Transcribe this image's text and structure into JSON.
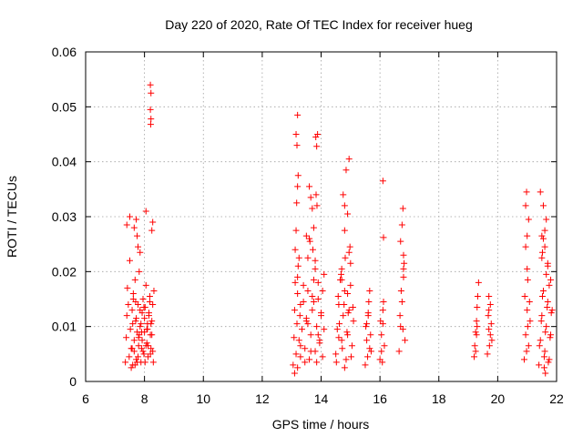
{
  "chart_data": {
    "type": "scatter",
    "title": "Day 220 of 2020, Rate Of TEC Index for receiver hueg",
    "xlabel": "GPS time / hours",
    "ylabel": "ROTI / TECUs",
    "xlim": [
      6,
      22
    ],
    "ylim": [
      0,
      0.06
    ],
    "x_ticks": [
      6,
      8,
      10,
      12,
      14,
      16,
      18,
      20,
      22
    ],
    "y_ticks": [
      0,
      0.01,
      0.02,
      0.03,
      0.04,
      0.05,
      0.06
    ],
    "x_tick_labels": [
      "6",
      "8",
      "10",
      "12",
      "14",
      "16",
      "18",
      "20",
      "22"
    ],
    "y_tick_labels": [
      "0",
      "0.01",
      "0.02",
      "0.03",
      "0.04",
      "0.05",
      "0.06"
    ],
    "grid": true,
    "marker": "+",
    "color": "#ff0000",
    "series": [
      {
        "x": [
          7.35,
          7.38,
          7.4,
          7.42,
          7.45,
          7.48,
          7.5,
          7.52,
          7.55,
          7.58,
          7.6,
          7.62,
          7.65,
          7.68,
          7.7,
          7.72,
          7.75,
          7.78,
          7.8,
          7.82,
          7.85,
          7.88,
          7.9,
          7.92,
          7.95,
          7.98,
          8.0,
          8.02,
          8.05,
          8.08,
          8.1,
          8.12,
          8.15,
          8.18,
          8.2,
          8.22,
          8.25,
          8.28,
          8.3,
          8.32,
          7.55,
          7.6,
          7.65,
          7.7,
          7.75,
          7.8,
          7.85,
          7.9,
          7.95,
          8.0,
          8.05,
          8.1,
          8.15,
          8.2,
          8.25,
          7.58,
          7.62,
          7.68,
          7.72,
          7.78,
          7.82,
          7.88,
          7.92,
          7.98,
          8.02,
          8.08,
          8.12,
          8.18,
          8.22,
          8.28,
          8.2,
          8.22,
          8.2,
          8.22,
          8.21,
          7.72,
          7.75,
          7.78,
          8.05,
          8.28,
          7.5,
          7.65,
          8.25,
          7.85,
          7.4,
          13.05,
          13.08,
          13.1,
          13.12,
          13.15,
          13.18,
          13.2,
          13.22,
          13.25,
          13.28,
          13.3,
          13.35,
          13.4,
          13.45,
          13.5,
          13.55,
          13.6,
          13.65,
          13.7,
          13.75,
          13.8,
          13.85,
          13.9,
          13.95,
          14.0,
          14.05,
          14.1,
          13.12,
          13.15,
          13.2,
          13.25,
          13.3,
          13.4,
          13.5,
          13.6,
          13.7,
          13.8,
          13.9,
          14.0,
          13.1,
          13.2,
          13.3,
          13.45,
          13.55,
          13.65,
          13.75,
          13.85,
          13.95,
          14.05,
          13.15,
          13.18,
          13.2,
          13.22,
          13.17,
          13.2,
          13.82,
          13.85,
          13.88,
          13.83,
          13.86,
          13.6,
          13.65,
          13.7,
          13.75,
          13.62,
          13.72,
          13.8,
          13.9,
          13.5,
          13.55,
          14.1,
          14.5,
          14.55,
          14.6,
          14.65,
          14.7,
          14.75,
          14.8,
          14.85,
          14.9,
          14.95,
          15.0,
          15.05,
          15.1,
          14.52,
          14.58,
          14.62,
          14.68,
          14.72,
          14.78,
          14.82,
          14.88,
          14.92,
          14.98,
          15.02,
          15.08,
          14.6,
          14.7,
          14.8,
          14.9,
          15.0,
          14.75,
          14.85,
          14.95,
          14.8,
          14.9,
          14.8,
          14.95,
          14.7,
          15.5,
          15.55,
          15.6,
          15.65,
          15.7,
          15.52,
          15.58,
          15.62,
          15.68,
          15.6,
          15.65,
          15.55,
          16.0,
          16.05,
          16.1,
          16.15,
          16.02,
          16.08,
          16.12,
          16.05,
          16.1,
          16.1,
          16.12,
          16.65,
          16.7,
          16.75,
          16.8,
          16.85,
          16.68,
          16.72,
          16.78,
          16.82,
          16.7,
          16.75,
          16.8,
          16.78,
          16.8,
          19.2,
          19.25,
          19.3,
          19.35,
          19.22,
          19.28,
          19.32,
          19.25,
          19.3,
          19.28,
          19.65,
          19.7,
          19.75,
          19.8,
          19.68,
          19.72,
          19.78,
          19.7,
          19.75,
          19.7,
          20.9,
          20.95,
          21.0,
          21.05,
          21.1,
          20.92,
          20.98,
          21.02,
          21.08,
          20.95,
          21.0,
          21.05,
          20.98,
          21.0,
          20.95,
          21.02,
          21.4,
          21.45,
          21.5,
          21.55,
          21.6,
          21.65,
          21.7,
          21.75,
          21.8,
          21.85,
          21.42,
          21.48,
          21.52,
          21.58,
          21.62,
          21.68,
          21.72,
          21.78,
          21.82,
          21.5,
          21.55,
          21.6,
          21.65,
          21.7,
          21.75,
          21.45,
          21.55,
          21.65,
          21.5,
          21.52,
          21.6,
          21.7,
          21.8,
          21.58,
          21.62
        ],
        "y": [
          0.0035,
          0.008,
          0.012,
          0.017,
          0.014,
          0.0045,
          0.022,
          0.0095,
          0.006,
          0.013,
          0.003,
          0.016,
          0.0075,
          0.0185,
          0.011,
          0.004,
          0.009,
          0.014,
          0.0065,
          0.02,
          0.01,
          0.0035,
          0.006,
          0.0125,
          0.015,
          0.005,
          0.009,
          0.0135,
          0.0175,
          0.007,
          0.0105,
          0.0045,
          0.012,
          0.0155,
          0.0085,
          0.006,
          0.011,
          0.014,
          0.0035,
          0.0165,
          0.0025,
          0.0105,
          0.0055,
          0.0145,
          0.0035,
          0.008,
          0.013,
          0.009,
          0.0055,
          0.0115,
          0.0065,
          0.0095,
          0.0125,
          0.005,
          0.0085,
          0.006,
          0.015,
          0.003,
          0.0115,
          0.0045,
          0.0085,
          0.0105,
          0.0075,
          0.0135,
          0.0035,
          0.0095,
          0.0065,
          0.0145,
          0.0105,
          0.0055,
          0.054,
          0.0525,
          0.0495,
          0.0478,
          0.0468,
          0.0295,
          0.0265,
          0.0245,
          0.031,
          0.029,
          0.03,
          0.028,
          0.0275,
          0.0235,
          0.0285,
          0.003,
          0.008,
          0.013,
          0.018,
          0.005,
          0.0105,
          0.016,
          0.021,
          0.0075,
          0.012,
          0.0045,
          0.0095,
          0.0145,
          0.006,
          0.011,
          0.0165,
          0.004,
          0.0085,
          0.013,
          0.0185,
          0.0055,
          0.01,
          0.015,
          0.007,
          0.012,
          0.0045,
          0.0095,
          0.024,
          0.0275,
          0.019,
          0.0225,
          0.014,
          0.0175,
          0.0115,
          0.026,
          0.0155,
          0.0205,
          0.0085,
          0.0125,
          0.0015,
          0.0025,
          0.0065,
          0.0035,
          0.0105,
          0.0055,
          0.0145,
          0.0035,
          0.0075,
          0.0165,
          0.045,
          0.043,
          0.0485,
          0.0375,
          0.0325,
          0.0355,
          0.0445,
          0.0428,
          0.045,
          0.034,
          0.032,
          0.0355,
          0.0335,
          0.0315,
          0.028,
          0.0255,
          0.024,
          0.022,
          0.018,
          0.0265,
          0.0225,
          0.0195,
          0.005,
          0.0095,
          0.014,
          0.0185,
          0.0075,
          0.012,
          0.0165,
          0.004,
          0.0085,
          0.013,
          0.0175,
          0.0065,
          0.011,
          0.0035,
          0.0155,
          0.0105,
          0.0195,
          0.006,
          0.014,
          0.0225,
          0.009,
          0.0125,
          0.0245,
          0.0045,
          0.0135,
          0.008,
          0.0185,
          0.0025,
          0.016,
          0.0215,
          0.034,
          0.0385,
          0.0405,
          0.032,
          0.0305,
          0.0275,
          0.0235,
          0.0205,
          0.003,
          0.0075,
          0.012,
          0.0165,
          0.0055,
          0.01,
          0.0045,
          0.0145,
          0.0085,
          0.0125,
          0.006,
          0.0105,
          0.004,
          0.0085,
          0.013,
          0.0065,
          0.011,
          0.0035,
          0.0145,
          0.0055,
          0.0105,
          0.0365,
          0.0262,
          0.0055,
          0.01,
          0.0145,
          0.019,
          0.0075,
          0.012,
          0.0165,
          0.0095,
          0.0215,
          0.0255,
          0.0285,
          0.023,
          0.0315,
          0.0205,
          0.0045,
          0.009,
          0.0135,
          0.018,
          0.0065,
          0.011,
          0.0155,
          0.0055,
          0.01,
          0.0085,
          0.005,
          0.0095,
          0.014,
          0.0075,
          0.012,
          0.0065,
          0.0105,
          0.0155,
          0.0085,
          0.013,
          0.004,
          0.0085,
          0.013,
          0.0065,
          0.011,
          0.0155,
          0.0055,
          0.01,
          0.0145,
          0.0245,
          0.0265,
          0.0295,
          0.0345,
          0.0205,
          0.032,
          0.0185,
          0.003,
          0.0075,
          0.012,
          0.0165,
          0.0055,
          0.01,
          0.0145,
          0.004,
          0.0085,
          0.013,
          0.0065,
          0.011,
          0.0155,
          0.0045,
          0.009,
          0.0135,
          0.0035,
          0.008,
          0.0125,
          0.0225,
          0.026,
          0.0245,
          0.0195,
          0.021,
          0.0175,
          0.0345,
          0.032,
          0.0295,
          0.0265,
          0.0235,
          0.0275,
          0.0215,
          0.0185,
          0.0025,
          0.0015
        ]
      }
    ]
  }
}
